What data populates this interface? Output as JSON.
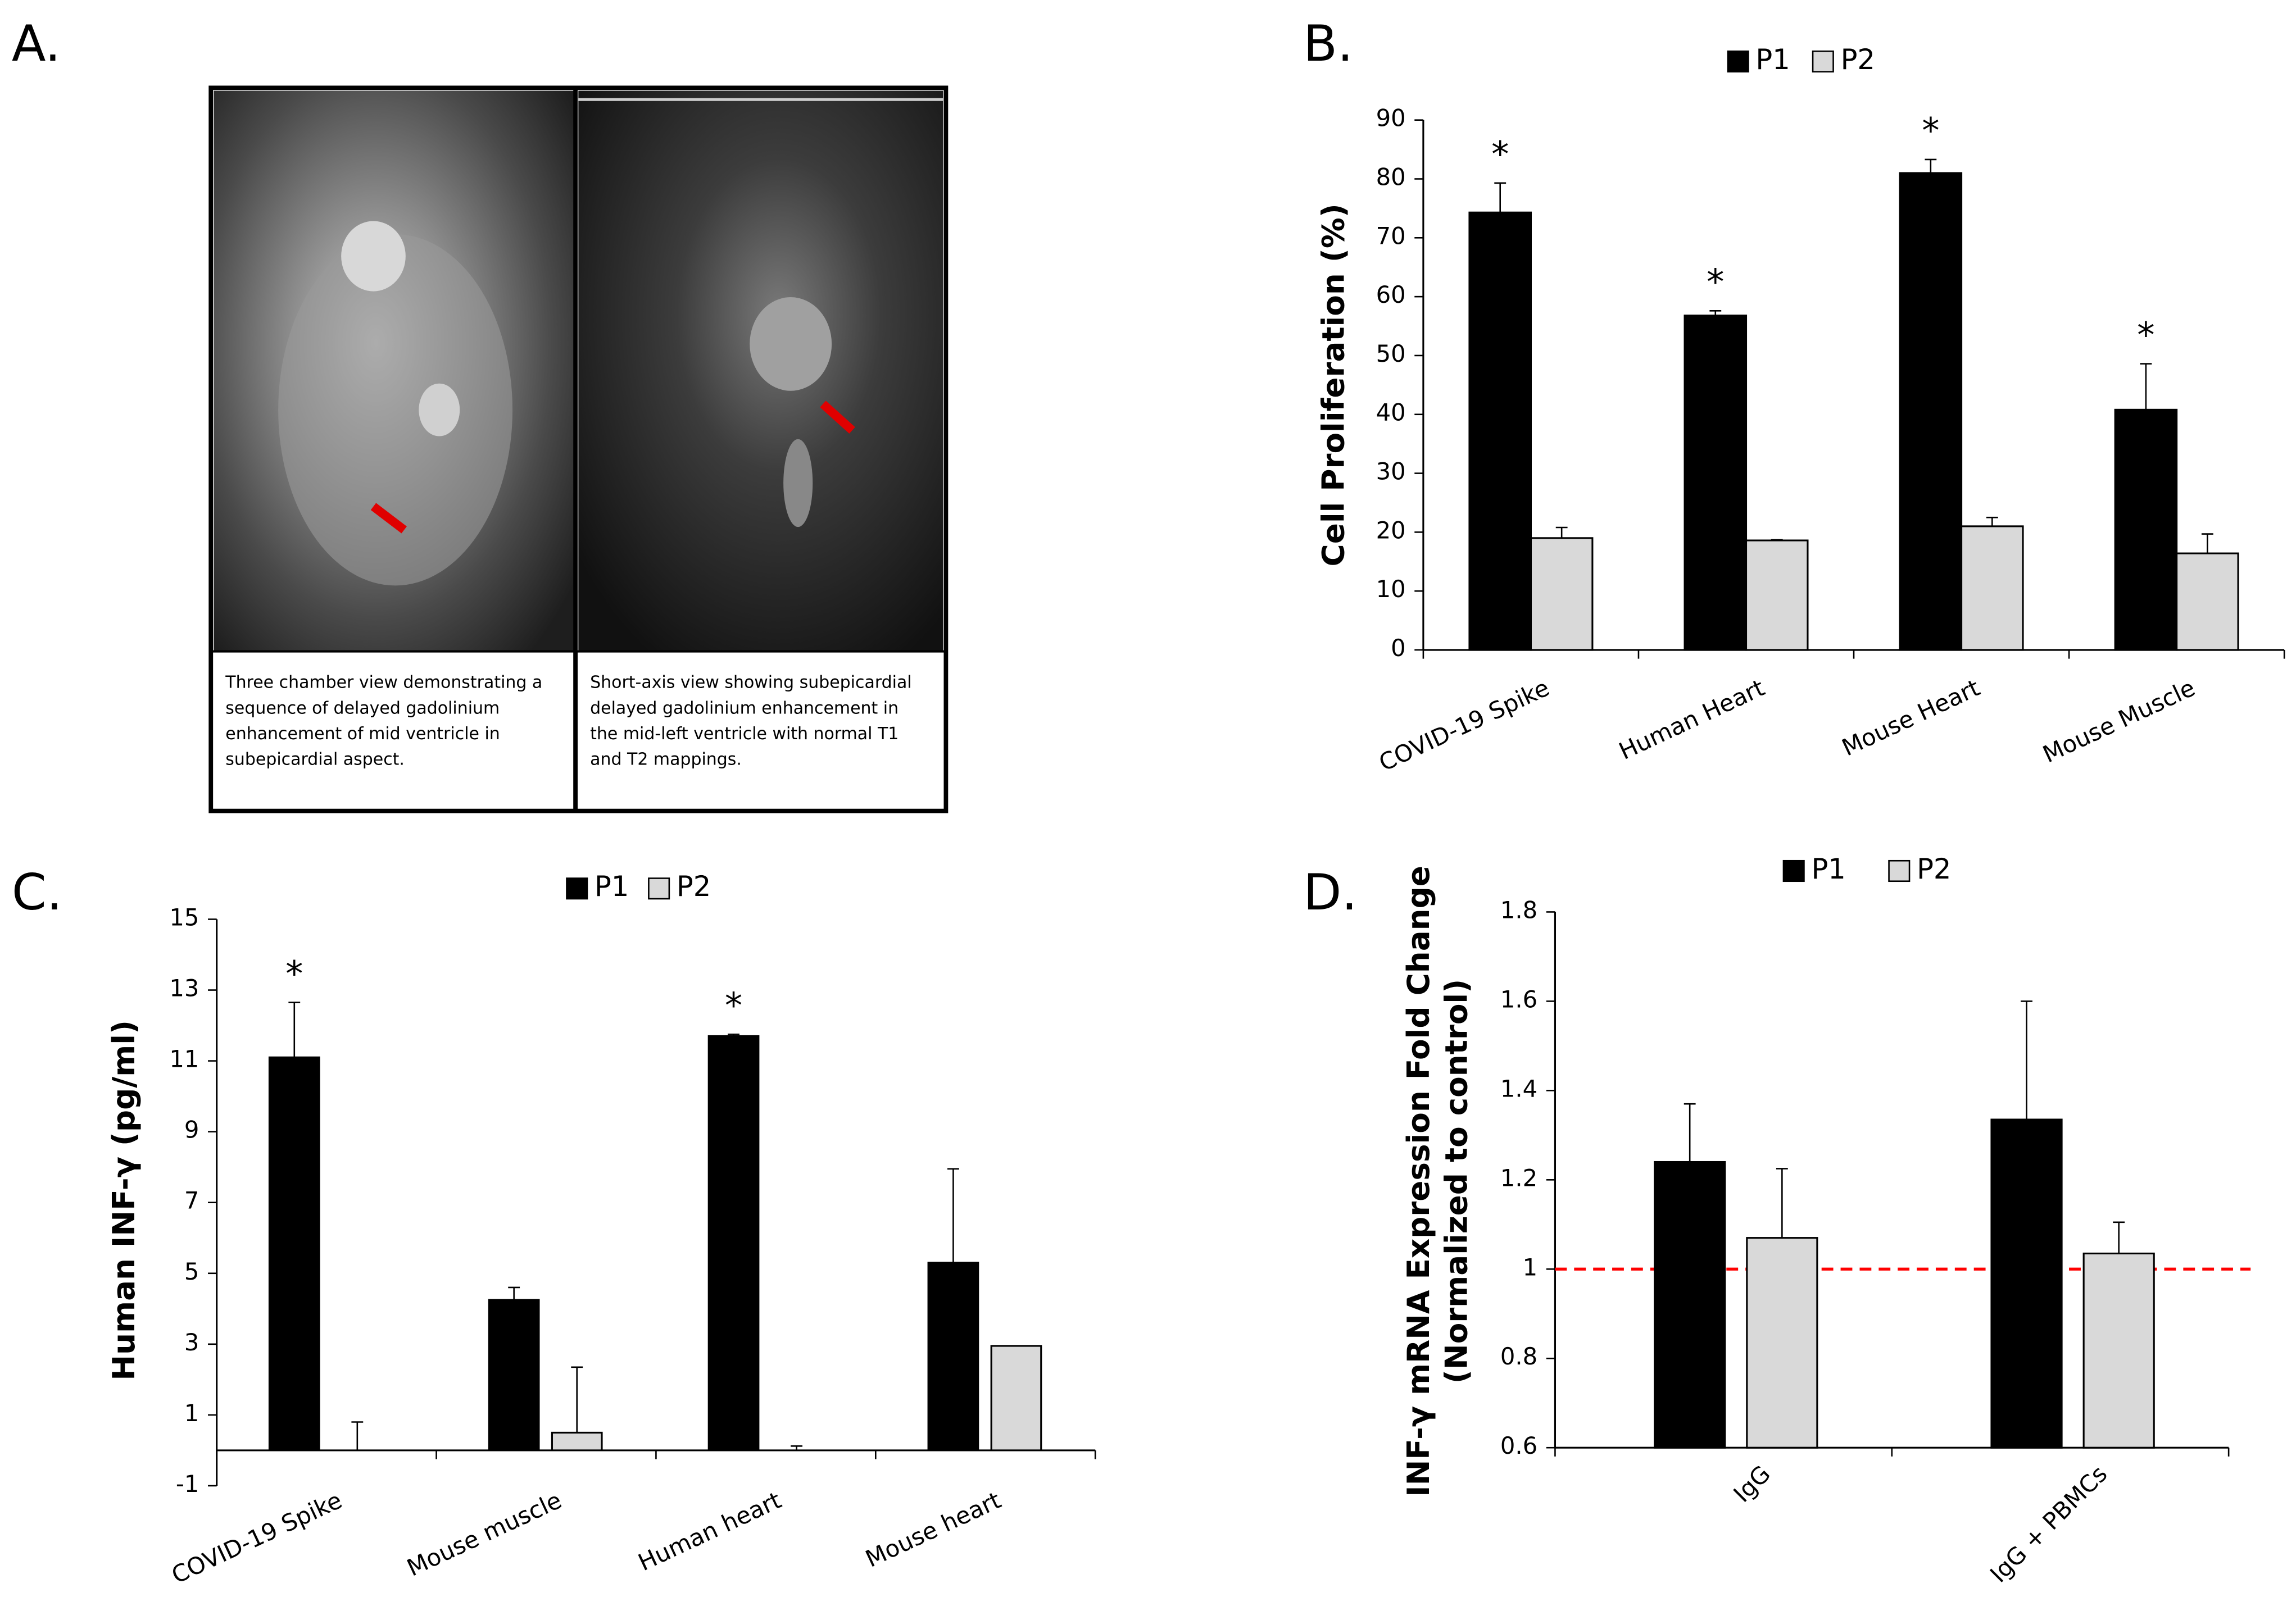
{
  "panel_a": {
    "panel_label": "A.",
    "captions": [
      [
        "Three chamber view demonstrating a",
        "sequence of delayed gadolinium",
        "enhancement of mid ventricle in",
        "subepicardial aspect."
      ],
      [
        "Short-axis view showing subepicardial",
        "delayed gadolinium enhancement in",
        "the mid-left ventricle with normal T1",
        "and T2 mappings."
      ]
    ]
  },
  "chart_data": [
    {
      "type": "bar",
      "panel_label": "B.",
      "y_label": "Cell Proliferation (%)",
      "categories": [
        "COVID-19 Spike",
        "Human Heart",
        "Mouse Heart",
        "Mouse Muscle"
      ],
      "series": [
        {
          "name": "P1",
          "color": "#000000",
          "values": [
            74.3,
            56.8,
            81.0,
            40.8
          ],
          "errors": [
            5.0,
            0.8,
            2.3,
            7.8
          ],
          "markers": [
            "*",
            "*",
            "*",
            "*"
          ]
        },
        {
          "name": "P2",
          "color": "#d9d9d9",
          "values": [
            19.0,
            18.6,
            21.0,
            16.4
          ],
          "errors": [
            1.8,
            0.1,
            1.5,
            3.3
          ]
        }
      ],
      "ylim": [
        0,
        90
      ],
      "yticks": [
        0,
        10,
        20,
        30,
        40,
        50,
        60,
        70,
        80,
        90
      ],
      "legend": "top"
    },
    {
      "type": "bar",
      "panel_label": "C.",
      "y_label": "Human INF-γ  (pg/ml)",
      "categories": [
        "COVID-19 Spike",
        "Mouse muscle",
        "Human heart",
        "Mouse heart"
      ],
      "series": [
        {
          "name": "P1",
          "color": "#000000",
          "values": [
            11.1,
            4.25,
            11.7,
            5.3
          ],
          "errors": [
            1.55,
            0.35,
            0.05,
            2.65
          ],
          "markers": [
            "*",
            null,
            "*",
            null
          ]
        },
        {
          "name": "P2",
          "color": "#d9d9d9",
          "values": [
            0,
            0.5,
            0,
            2.95
          ],
          "errors": [
            0.8,
            1.85,
            0.12,
            0
          ]
        }
      ],
      "ylim": [
        -1,
        15
      ],
      "yticks": [
        -1,
        1,
        3,
        5,
        7,
        9,
        11,
        13,
        15
      ],
      "legend": "top"
    },
    {
      "type": "bar",
      "panel_label": "D.",
      "y_label": [
        "INF-γ mRNA Expression Fold Change",
        "(Normalized to control)"
      ],
      "categories": [
        "IgG",
        "IgG + PBMCs"
      ],
      "series": [
        {
          "name": "P1",
          "color": "#000000",
          "values": [
            1.24,
            1.335
          ],
          "errors": [
            0.13,
            0.265
          ]
        },
        {
          "name": "P2",
          "color": "#d9d9d9",
          "values": [
            1.07,
            1.035
          ],
          "errors": [
            0.155,
            0.07
          ]
        }
      ],
      "ylim": [
        0.6,
        1.8
      ],
      "yticks": [
        0.6,
        0.8,
        1,
        1.2,
        1.4,
        1.6,
        1.8
      ],
      "reference_line": {
        "value": 1,
        "color": "#ff0000",
        "style": "dashed"
      },
      "legend": "top"
    }
  ]
}
